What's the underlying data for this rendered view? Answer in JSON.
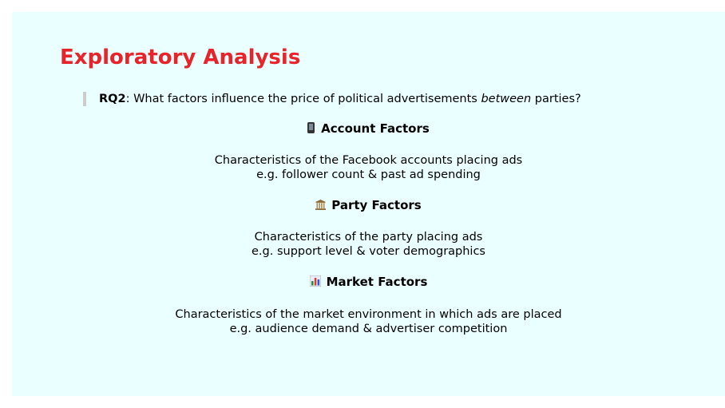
{
  "slide": {
    "title": "Exploratory Analysis",
    "rq": {
      "label": "RQ2",
      "text_before": ": What factors influence the price of political advertisements ",
      "emphasis": "between",
      "text_after": " parties?"
    },
    "factors": [
      {
        "icon": "mobile-phone-icon",
        "heading": "Account Factors",
        "line1": "Characteristics of the Facebook accounts placing ads",
        "line2": "e.g. follower count & past ad spending"
      },
      {
        "icon": "classical-building-icon",
        "heading": "Party Factors",
        "line1": "Characteristics of the party placing ads",
        "line2": "e.g. support level & voter demographics"
      },
      {
        "icon": "bar-chart-icon",
        "heading": "Market Factors",
        "line1": "Characteristics of the market environment in which ads are placed",
        "line2": "e.g. audience demand & advertiser competition"
      }
    ]
  },
  "colors": {
    "title": "#e8232a",
    "background": "#eaffff",
    "quote_bar": "#cccccc"
  }
}
